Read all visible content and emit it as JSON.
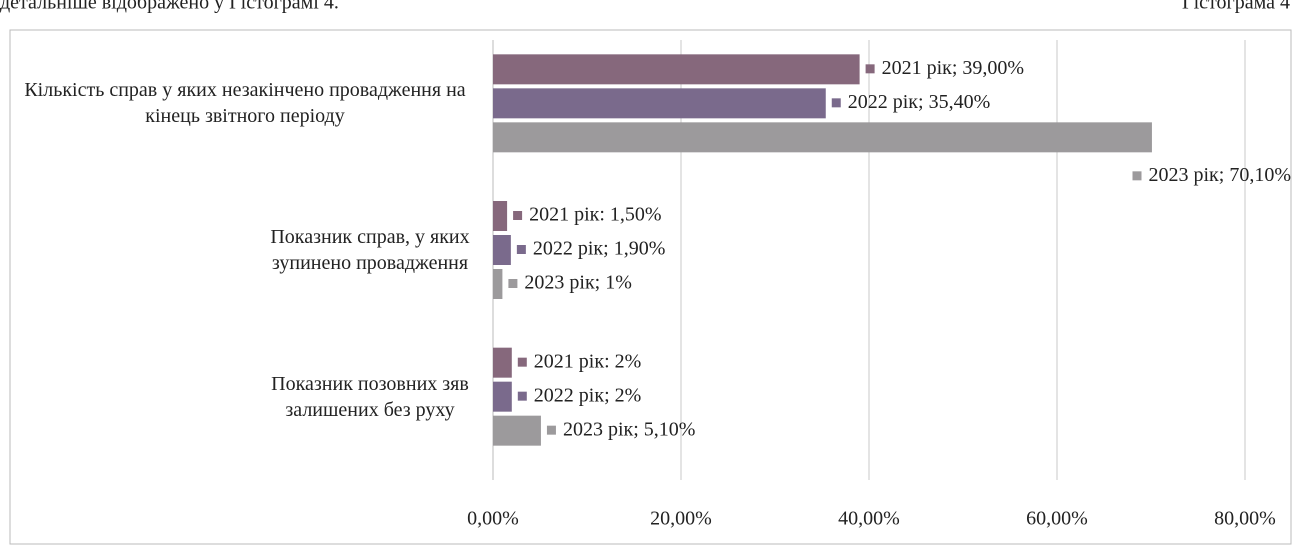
{
  "page_text": {
    "caption_left": "детальніше відображено у Гістограмі 4.",
    "caption_right": "Гістограма 4"
  },
  "chart_data": {
    "type": "barh",
    "categories": [
      "Кількість справ у яких незакінчено провадження на кінець звітного періоду",
      "Показник справ, у яких зупинено провадження",
      "Показник позовних зяв залишених без руху"
    ],
    "series": [
      {
        "name": "2021 рік",
        "color": "#86687c",
        "values": [
          39,
          1.5,
          2
        ],
        "value_labels": [
          "2021 рік; 39,00%",
          "2021 рік: 1,50%",
          "2021 рік: 2%"
        ]
      },
      {
        "name": "2022 рік",
        "color": "#7a6a8c",
        "values": [
          35.4,
          1.9,
          2
        ],
        "value_labels": [
          "2022 рік; 35,40%",
          "2022 рік; 1,90%",
          "2022 рік; 2%"
        ]
      },
      {
        "name": "2023 рік",
        "color": "#9c9a9c",
        "values": [
          70.1,
          1,
          5.1
        ],
        "value_labels": [
          "2023 рік; 70,10%",
          "2023 рік; 1%",
          "2023 рік; 5,10%"
        ]
      }
    ],
    "xlim": [
      0,
      80
    ],
    "xticks": [
      {
        "value": 0,
        "label": "0,00%"
      },
      {
        "value": 20,
        "label": "20,00%"
      },
      {
        "value": 40,
        "label": "40,00%"
      },
      {
        "value": 60,
        "label": "60,00%"
      },
      {
        "value": 80,
        "label": "80,00%"
      }
    ],
    "grid": true
  }
}
